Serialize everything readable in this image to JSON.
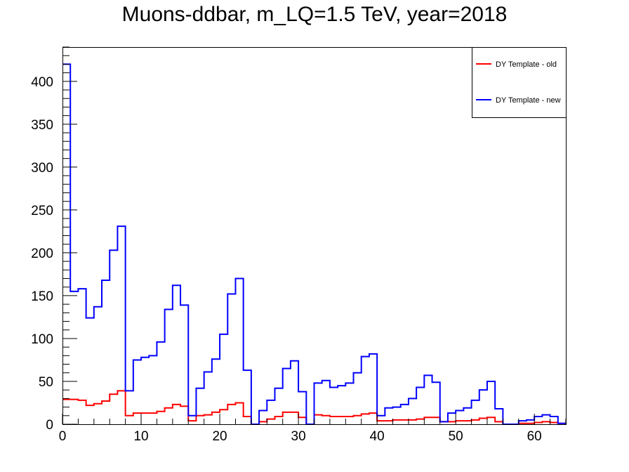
{
  "chart_data": {
    "type": "line",
    "title": "Muons-ddbar, m_LQ=1.5 TeV, year=2018",
    "xlabel": "",
    "ylabel": "",
    "xlim": [
      0,
      64
    ],
    "ylim": [
      0,
      440
    ],
    "x_major_ticks": [
      0,
      10,
      20,
      30,
      40,
      50,
      60
    ],
    "y_major_ticks": [
      0,
      50,
      100,
      150,
      200,
      250,
      300,
      350,
      400
    ],
    "bin_width": 1,
    "legend_position": "top-right",
    "series": [
      {
        "name": "DY Template - old",
        "color": "#ff0000",
        "values": [
          29,
          29,
          28,
          22,
          24,
          27,
          35,
          39,
          10,
          13,
          13,
          13,
          15,
          19,
          23,
          21,
          4,
          10,
          11,
          14,
          17,
          23,
          25,
          9,
          0,
          3,
          6,
          9,
          14,
          14,
          8,
          0,
          11,
          10,
          9,
          9,
          9,
          10,
          12,
          13,
          4,
          4,
          5,
          5,
          5,
          6,
          8,
          8,
          3,
          3,
          4,
          4,
          5,
          7,
          8,
          3,
          0,
          0,
          1,
          1,
          2,
          3,
          2,
          1
        ]
      },
      {
        "name": "DY Template - new",
        "color": "#0000ff",
        "values": [
          420,
          155,
          158,
          124,
          137,
          168,
          203,
          231,
          39,
          75,
          78,
          80,
          96,
          134,
          162,
          139,
          10,
          42,
          61,
          76,
          105,
          152,
          170,
          63,
          0,
          16,
          28,
          42,
          65,
          74,
          38,
          0,
          48,
          51,
          43,
          45,
          48,
          60,
          79,
          82,
          10,
          19,
          20,
          23,
          30,
          43,
          57,
          49,
          3,
          13,
          16,
          19,
          28,
          40,
          50,
          18,
          0,
          0,
          4,
          5,
          9,
          11,
          9,
          1
        ]
      }
    ]
  }
}
